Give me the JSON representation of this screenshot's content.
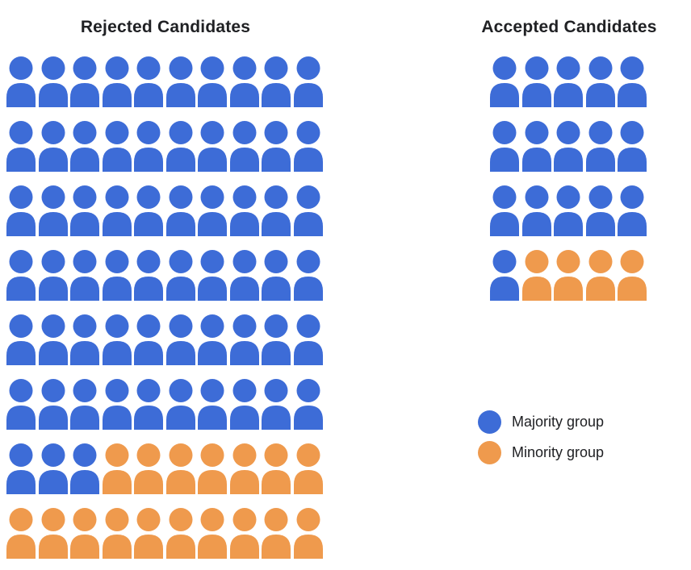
{
  "chart_data": [
    {
      "type": "pictogram",
      "title": "Rejected Candidates",
      "icon": "person",
      "columns": 10,
      "rows": 8,
      "total": 80,
      "fill_order": "row-major, majority group first",
      "series": [
        {
          "name": "Majority group",
          "value": 63,
          "color": "#3d6cd7"
        },
        {
          "name": "Minority group",
          "value": 17,
          "color": "#ef9a4d"
        }
      ]
    },
    {
      "type": "pictogram",
      "title": "Accepted Candidates",
      "icon": "person",
      "columns": 5,
      "rows": 4,
      "total": 20,
      "fill_order": "row-major, majority group first",
      "series": [
        {
          "name": "Majority group",
          "value": 16,
          "color": "#3d6cd7"
        },
        {
          "name": "Minority group",
          "value": 4,
          "color": "#ef9a4d"
        }
      ]
    }
  ],
  "legend": {
    "items": [
      {
        "label": "Majority group",
        "color": "#3d6cd7"
      },
      {
        "label": "Minority group",
        "color": "#ef9a4d"
      }
    ]
  }
}
